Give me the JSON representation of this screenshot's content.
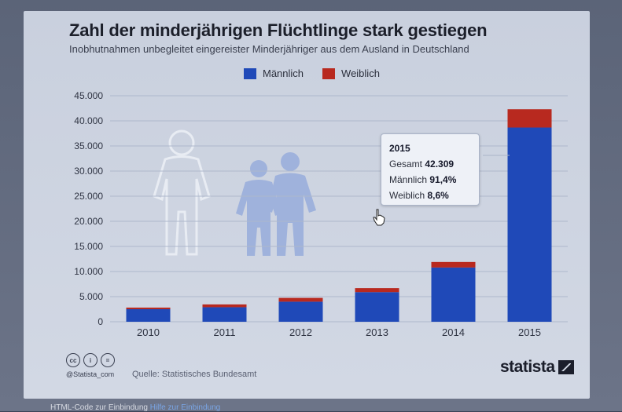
{
  "title": "Zahl der minderjährigen Flüchtlinge stark gestiegen",
  "subtitle": "Inobhutnahmen unbegleitet eingereister Minderjähriger aus dem Ausland in Deutschland",
  "legend": [
    {
      "label": "Männlich",
      "color": "#1f49b8"
    },
    {
      "label": "Weiblich",
      "color": "#b8291f"
    }
  ],
  "tooltip": {
    "year": "2015",
    "rows": [
      {
        "label": "Gesamt",
        "value": "42.309"
      },
      {
        "label": "Männlich",
        "value": "91,4%"
      },
      {
        "label": "Weiblich",
        "value": "8,6%"
      }
    ]
  },
  "footer": {
    "handle": "@Statista_com",
    "source": "Quelle: Statistisches Bundesamt",
    "brand": "statista",
    "license_icons": [
      "cc-icon",
      "by-icon",
      "nd-icon"
    ]
  },
  "bottom_bar": {
    "text": "HTML-Code zur Einbindung",
    "link": "Hilfe zur Einbindung"
  },
  "chart_data": {
    "type": "bar",
    "stacked": true,
    "categories": [
      "2010",
      "2011",
      "2012",
      "2013",
      "2014",
      "2015"
    ],
    "series": [
      {
        "name": "Männlich",
        "values": [
          2500,
          2900,
          4000,
          5900,
          10800,
          38670
        ]
      },
      {
        "name": "Weiblich",
        "values": [
          320,
          550,
          750,
          800,
          1100,
          3640
        ]
      }
    ],
    "y_ticks": [
      "0",
      "5.000",
      "10.000",
      "15.000",
      "20.000",
      "25.000",
      "30.000",
      "35.000",
      "40.000",
      "45.000"
    ],
    "ylim": [
      0,
      45000
    ],
    "grid": true,
    "legend_position": "top"
  }
}
